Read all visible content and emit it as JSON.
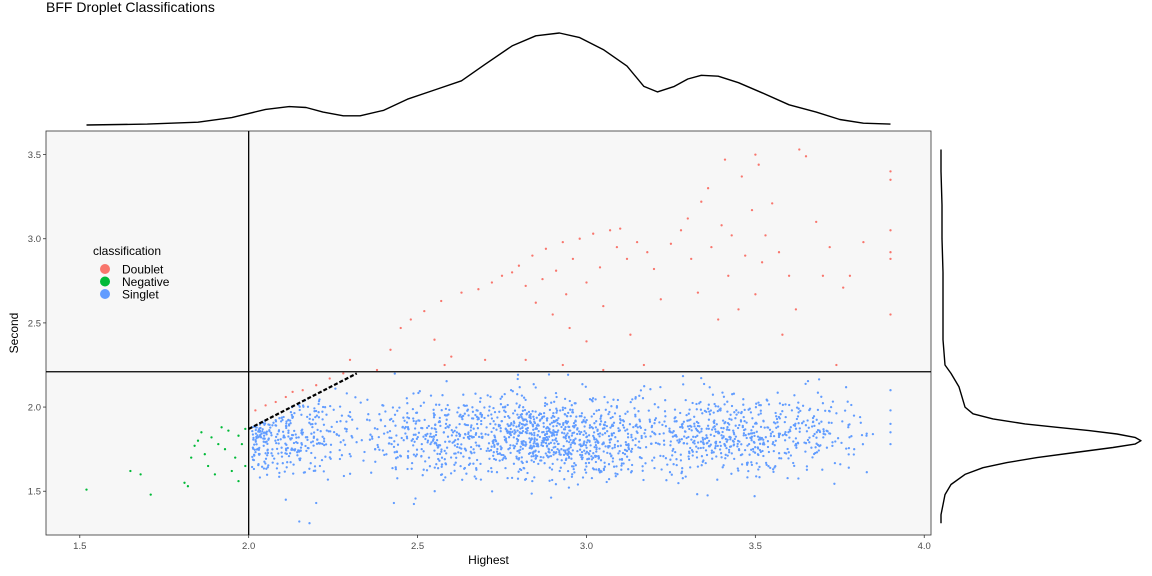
{
  "chart_data": {
    "type": "scatter",
    "title": "BFF Droplet Classifications",
    "xlabel": "Highest",
    "ylabel": "Second",
    "xlim": [
      1.4,
      4.02
    ],
    "ylim": [
      1.24,
      3.64
    ],
    "x_ticks": [
      1.5,
      2.0,
      2.5,
      3.0,
      3.5,
      4.0
    ],
    "x_tick_labels": [
      "1.5",
      "2.0",
      "2.5",
      "3.0",
      "3.5",
      "4.0"
    ],
    "y_ticks": [
      1.5,
      2.0,
      2.5,
      3.0,
      3.5
    ],
    "y_tick_labels": [
      "1.5",
      "2.0",
      "2.5",
      "3.0",
      "3.5"
    ],
    "grid": false,
    "panel_background": "#f7f7f7",
    "reference_lines": {
      "vertical_x": 2.0,
      "horizontal_y": 2.21,
      "dashed_from": [
        2.0,
        1.87
      ],
      "dashed_to": [
        2.32,
        2.2
      ]
    },
    "legend": {
      "title": "classification",
      "placement": "left-center inside panel",
      "entries": [
        {
          "label": "Doublet",
          "color": "#f8766d"
        },
        {
          "label": "Negative",
          "color": "#00ba38"
        },
        {
          "label": "Singlet",
          "color": "#619cff"
        }
      ]
    },
    "series": [
      {
        "name": "Doublet",
        "color": "#f8766d",
        "points": [
          [
            2.02,
            1.98
          ],
          [
            2.05,
            2.01
          ],
          [
            2.08,
            2.03
          ],
          [
            2.11,
            2.06
          ],
          [
            2.13,
            2.09
          ],
          [
            2.16,
            2.1
          ],
          [
            2.2,
            2.13
          ],
          [
            2.24,
            2.17
          ],
          [
            2.28,
            2.2
          ],
          [
            2.3,
            2.28
          ],
          [
            2.42,
            2.34
          ],
          [
            2.45,
            2.47
          ],
          [
            2.48,
            2.52
          ],
          [
            2.52,
            2.57
          ],
          [
            2.57,
            2.63
          ],
          [
            2.63,
            2.68
          ],
          [
            2.68,
            2.7
          ],
          [
            2.72,
            2.74
          ],
          [
            2.75,
            2.78
          ],
          [
            2.78,
            2.8
          ],
          [
            2.8,
            2.84
          ],
          [
            2.82,
            2.72
          ],
          [
            2.84,
            2.9
          ],
          [
            2.85,
            2.62
          ],
          [
            2.87,
            2.76
          ],
          [
            2.88,
            2.94
          ],
          [
            2.9,
            2.55
          ],
          [
            2.91,
            2.81
          ],
          [
            2.93,
            2.98
          ],
          [
            2.94,
            2.67
          ],
          [
            2.95,
            2.47
          ],
          [
            2.96,
            2.88
          ],
          [
            2.98,
            3.0
          ],
          [
            3.0,
            2.74
          ],
          [
            3.0,
            2.39
          ],
          [
            3.02,
            3.03
          ],
          [
            3.04,
            2.83
          ],
          [
            3.05,
            2.6
          ],
          [
            3.07,
            3.05
          ],
          [
            3.09,
            2.95
          ],
          [
            3.1,
            3.06
          ],
          [
            3.12,
            2.88
          ],
          [
            3.13,
            2.43
          ],
          [
            3.15,
            2.98
          ],
          [
            3.18,
            2.92
          ],
          [
            3.2,
            2.82
          ],
          [
            3.22,
            2.64
          ],
          [
            3.25,
            2.97
          ],
          [
            3.28,
            3.05
          ],
          [
            3.3,
            3.12
          ],
          [
            3.31,
            2.88
          ],
          [
            3.33,
            2.68
          ],
          [
            3.34,
            3.22
          ],
          [
            3.36,
            3.3
          ],
          [
            3.37,
            2.95
          ],
          [
            3.39,
            2.52
          ],
          [
            3.4,
            3.08
          ],
          [
            3.42,
            2.78
          ],
          [
            3.43,
            3.02
          ],
          [
            3.45,
            2.58
          ],
          [
            3.46,
            3.37
          ],
          [
            3.47,
            2.9
          ],
          [
            3.49,
            3.17
          ],
          [
            3.5,
            2.67
          ],
          [
            3.51,
            3.44
          ],
          [
            3.52,
            2.86
          ],
          [
            3.53,
            3.02
          ],
          [
            3.55,
            3.21
          ],
          [
            3.57,
            2.92
          ],
          [
            3.58,
            2.43
          ],
          [
            3.6,
            2.78
          ],
          [
            3.62,
            2.58
          ],
          [
            3.63,
            3.53
          ],
          [
            3.65,
            3.49
          ],
          [
            3.68,
            3.1
          ],
          [
            3.7,
            2.78
          ],
          [
            3.72,
            2.95
          ],
          [
            3.74,
            2.25
          ],
          [
            3.76,
            2.71
          ],
          [
            3.78,
            2.78
          ],
          [
            3.82,
            2.98
          ],
          [
            3.9,
            3.4
          ],
          [
            3.9,
            3.35
          ],
          [
            3.9,
            3.05
          ],
          [
            3.9,
            2.92
          ],
          [
            3.9,
            2.88
          ],
          [
            3.9,
            2.55
          ],
          [
            3.5,
            3.5
          ],
          [
            3.41,
            3.47
          ],
          [
            3.17,
            2.25
          ],
          [
            3.05,
            2.22
          ],
          [
            2.93,
            2.25
          ],
          [
            2.82,
            2.28
          ],
          [
            2.7,
            2.28
          ],
          [
            2.6,
            2.3
          ],
          [
            2.58,
            2.25
          ],
          [
            2.55,
            2.4
          ],
          [
            2.38,
            2.22
          ]
        ]
      },
      {
        "name": "Negative",
        "color": "#00ba38",
        "points": [
          [
            1.52,
            1.51
          ],
          [
            1.65,
            1.62
          ],
          [
            1.68,
            1.6
          ],
          [
            1.71,
            1.48
          ],
          [
            1.81,
            1.55
          ],
          [
            1.82,
            1.53
          ],
          [
            1.83,
            1.7
          ],
          [
            1.84,
            1.77
          ],
          [
            1.85,
            1.8
          ],
          [
            1.86,
            1.85
          ],
          [
            1.87,
            1.72
          ],
          [
            1.88,
            1.65
          ],
          [
            1.89,
            1.82
          ],
          [
            1.9,
            1.6
          ],
          [
            1.91,
            1.78
          ],
          [
            1.92,
            1.88
          ],
          [
            1.93,
            1.75
          ],
          [
            1.94,
            1.86
          ],
          [
            1.95,
            1.62
          ],
          [
            1.96,
            1.7
          ],
          [
            1.97,
            1.83
          ],
          [
            1.97,
            1.56
          ],
          [
            1.98,
            1.78
          ],
          [
            1.99,
            1.65
          ],
          [
            1.99,
            1.87
          ]
        ]
      },
      {
        "name": "Singlet",
        "color": "#619cff",
        "clusters": [
          {
            "center": [
              2.12,
              1.83
            ],
            "spread": [
              0.1,
              0.12
            ],
            "count": 320
          },
          {
            "center": [
              2.55,
              1.83
            ],
            "spread": [
              0.12,
              0.12
            ],
            "count": 300
          },
          {
            "center": [
              2.9,
              1.82
            ],
            "spread": [
              0.16,
              0.12
            ],
            "count": 900
          },
          {
            "center": [
              3.42,
              1.83
            ],
            "spread": [
              0.15,
              0.12
            ],
            "count": 520
          },
          {
            "center": [
              3.7,
              1.87
            ],
            "spread": [
              0.07,
              0.13
            ],
            "count": 90
          }
        ],
        "points": [
          [
            2.15,
            1.32
          ],
          [
            2.18,
            1.31
          ],
          [
            2.11,
            1.45
          ],
          [
            2.2,
            1.43
          ],
          [
            2.43,
            1.43
          ],
          [
            3.9,
            2.1
          ],
          [
            3.9,
            1.98
          ],
          [
            3.9,
            1.9
          ],
          [
            3.9,
            1.85
          ],
          [
            3.9,
            1.78
          ]
        ]
      }
    ],
    "marginal_x_density": {
      "x": [
        1.52,
        1.7,
        1.85,
        1.95,
        2.05,
        2.12,
        2.17,
        2.22,
        2.28,
        2.33,
        2.4,
        2.47,
        2.55,
        2.63,
        2.7,
        2.78,
        2.85,
        2.92,
        2.98,
        3.05,
        3.12,
        3.17,
        3.21,
        3.26,
        3.3,
        3.34,
        3.39,
        3.45,
        3.52,
        3.6,
        3.68,
        3.75,
        3.82,
        3.9
      ],
      "density": [
        0.0,
        0.01,
        0.03,
        0.08,
        0.17,
        0.2,
        0.19,
        0.14,
        0.1,
        0.1,
        0.16,
        0.28,
        0.38,
        0.48,
        0.66,
        0.86,
        0.97,
        1.0,
        0.95,
        0.82,
        0.64,
        0.42,
        0.36,
        0.42,
        0.5,
        0.54,
        0.53,
        0.46,
        0.35,
        0.22,
        0.14,
        0.06,
        0.02,
        0.01
      ]
    },
    "marginal_y_density": {
      "y": [
        1.31,
        1.36,
        1.42,
        1.48,
        1.54,
        1.6,
        1.64,
        1.67,
        1.7,
        1.73,
        1.76,
        1.78,
        1.8,
        1.82,
        1.84,
        1.86,
        1.88,
        1.9,
        1.93,
        1.96,
        2.0,
        2.04,
        2.08,
        2.12,
        2.16,
        2.2,
        2.25,
        2.4,
        2.6,
        2.8,
        3.0,
        3.2,
        3.4,
        3.53
      ],
      "density": [
        0.0,
        0.0,
        0.01,
        0.02,
        0.05,
        0.12,
        0.21,
        0.33,
        0.48,
        0.67,
        0.86,
        0.97,
        1.0,
        0.97,
        0.88,
        0.74,
        0.58,
        0.42,
        0.26,
        0.16,
        0.12,
        0.11,
        0.1,
        0.09,
        0.07,
        0.05,
        0.02,
        0.01,
        0.01,
        0.01,
        0.005,
        0.005,
        0.0,
        0.0
      ]
    }
  }
}
